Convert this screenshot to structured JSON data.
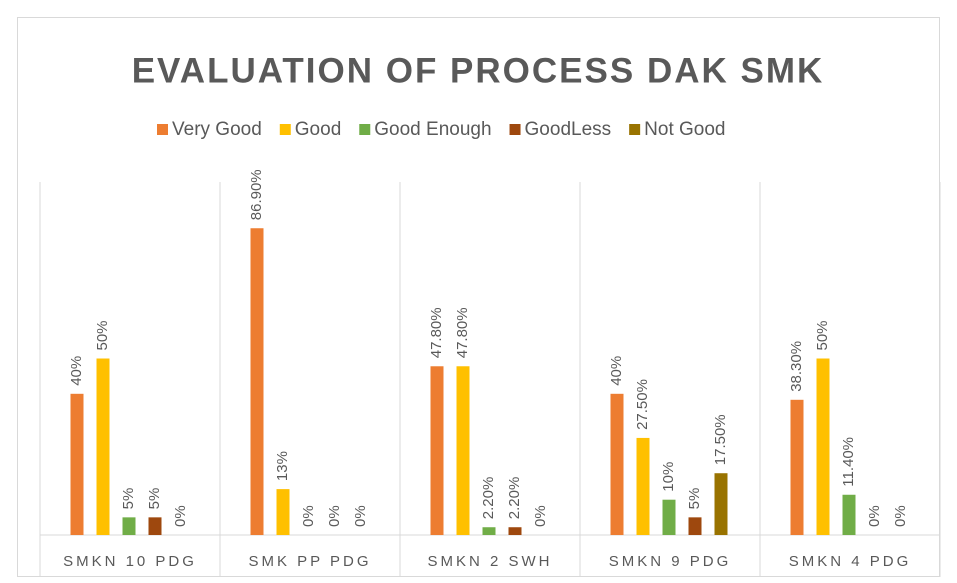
{
  "chart_data": {
    "type": "bar",
    "title": "EVALUATION OF PROCESS DAK SMK",
    "categories": [
      "SMKN 10 PDG",
      "SMK PP PDG",
      "SMKN 2 SWH",
      "SMKN 9 PDG",
      "SMKN 4 PDG"
    ],
    "series": [
      {
        "name": "Very Good",
        "color": "#ED7D31",
        "values": [
          40,
          86.9,
          47.8,
          40,
          38.3
        ],
        "value_labels": [
          "40%",
          "86.90%",
          "47.80%",
          "40%",
          "38.30%"
        ]
      },
      {
        "name": "Good",
        "color": "#FFC000",
        "values": [
          50,
          13,
          47.8,
          27.5,
          50
        ],
        "value_labels": [
          "50%",
          "13%",
          "47.80%",
          "27.50%",
          "50%"
        ]
      },
      {
        "name": "Good Enough",
        "color": "#70AD47",
        "values": [
          5,
          0,
          2.2,
          10,
          11.4
        ],
        "value_labels": [
          "5%",
          "0%",
          "2.20%",
          "10%",
          "11.40%"
        ]
      },
      {
        "name": "GoodLess",
        "color": "#9E480E",
        "values": [
          5,
          0,
          2.2,
          5,
          0
        ],
        "value_labels": [
          "5%",
          "0%",
          "2.20%",
          "5%",
          "0%"
        ]
      },
      {
        "name": "Not Good",
        "color": "#997300",
        "values": [
          0,
          0,
          0,
          17.5,
          0
        ],
        "value_labels": [
          "0%",
          "0%",
          "0%",
          "17.50%",
          "0%"
        ]
      }
    ],
    "ylim": [
      0,
      100
    ],
    "legend": "top"
  }
}
